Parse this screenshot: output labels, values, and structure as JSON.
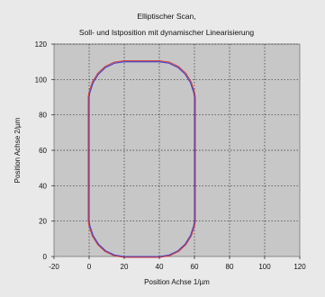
{
  "chart_data": {
    "type": "line",
    "title": "Elliptischer Scan,",
    "subtitle": "Soll- und Istposition mit dynamischer Linearisierung",
    "xlabel": "Position Achse 1/µm",
    "ylabel": "Position Achse 2/µm",
    "xlim": [
      -20,
      120
    ],
    "ylim": [
      0,
      120
    ],
    "x_ticks": [
      "-20",
      "0",
      "20",
      "40",
      "60",
      "80",
      "100",
      "120"
    ],
    "y_ticks": [
      "0",
      "20",
      "40",
      "60",
      "80",
      "100",
      "120"
    ],
    "grid": true,
    "legend": "none",
    "plot_background": "#c7c7c7",
    "page_background": "#e9e9e9",
    "series": [
      {
        "color": "#3f3fcf",
        "points": [
          [
            20,
            0
          ],
          [
            40,
            0
          ],
          [
            45.5,
            0.8
          ],
          [
            50.6,
            3.2
          ],
          [
            54.6,
            6.9
          ],
          [
            57.7,
            11.8
          ],
          [
            59.6,
            17.5
          ],
          [
            60,
            20
          ],
          [
            60,
            90
          ],
          [
            59.6,
            92.5
          ],
          [
            57.7,
            98.2
          ],
          [
            54.6,
            103.1
          ],
          [
            50.6,
            106.8
          ],
          [
            45.5,
            109.2
          ],
          [
            40,
            110
          ],
          [
            20,
            110
          ],
          [
            14.5,
            109.2
          ],
          [
            9.4,
            106.8
          ],
          [
            5.4,
            103.1
          ],
          [
            2.3,
            98.2
          ],
          [
            0.4,
            92.5
          ],
          [
            0,
            90
          ],
          [
            0,
            20
          ],
          [
            0.4,
            17.5
          ],
          [
            2.3,
            11.8
          ],
          [
            5.4,
            6.9
          ],
          [
            9.4,
            3.2
          ],
          [
            14.5,
            0.8
          ],
          [
            20,
            0
          ]
        ]
      },
      {
        "color": "#cf3f3f",
        "points": [
          [
            20,
            -0.5
          ],
          [
            40,
            -0.5
          ],
          [
            45.8,
            0.4
          ],
          [
            51,
            2.9
          ],
          [
            55.1,
            6.7
          ],
          [
            58.2,
            11.6
          ],
          [
            60.1,
            17.4
          ],
          [
            60.5,
            20
          ],
          [
            60.5,
            90
          ],
          [
            60.1,
            92.7
          ],
          [
            58.2,
            98.5
          ],
          [
            55.1,
            103.5
          ],
          [
            51,
            107.3
          ],
          [
            45.8,
            109.8
          ],
          [
            40,
            110.6
          ],
          [
            20,
            110.6
          ],
          [
            14.2,
            109.8
          ],
          [
            9,
            107.3
          ],
          [
            4.9,
            103.5
          ],
          [
            1.8,
            98.5
          ],
          [
            -0.1,
            92.7
          ],
          [
            -0.5,
            90
          ],
          [
            -0.5,
            20
          ],
          [
            -0.1,
            17.4
          ],
          [
            1.8,
            11.6
          ],
          [
            4.9,
            6.7
          ],
          [
            9,
            2.9
          ],
          [
            14.2,
            0.4
          ],
          [
            20,
            -0.5
          ]
        ]
      }
    ]
  }
}
